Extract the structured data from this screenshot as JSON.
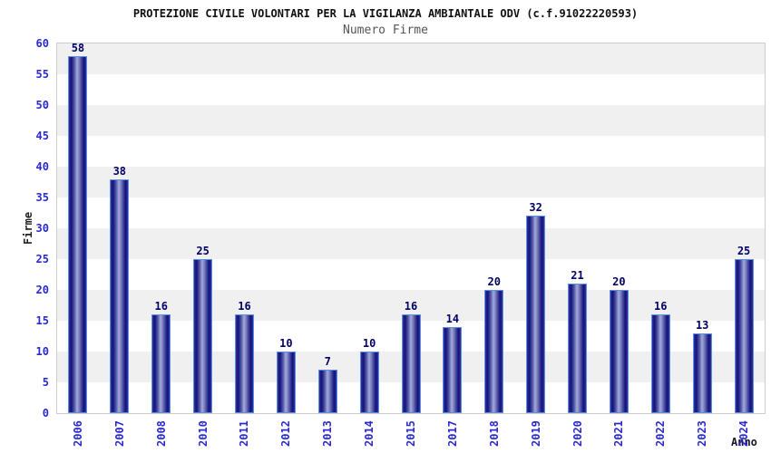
{
  "chart_data": {
    "type": "bar",
    "title": "PROTEZIONE CIVILE VOLONTARI PER LA VIGILANZA AMBIANTALE ODV (c.f.91022220593)",
    "subtitle": "Numero Firme",
    "xlabel": "Anno",
    "ylabel": "Firme",
    "categories": [
      "2006",
      "2007",
      "2008",
      "2010",
      "2011",
      "2012",
      "2013",
      "2014",
      "2015",
      "2017",
      "2018",
      "2019",
      "2020",
      "2021",
      "2022",
      "2023",
      "2024"
    ],
    "values": [
      58,
      38,
      16,
      25,
      16,
      10,
      7,
      10,
      16,
      14,
      20,
      32,
      21,
      20,
      16,
      13,
      25
    ],
    "ylim": [
      0,
      60
    ],
    "ytick_step": 5,
    "grid": "alternating-horizontal-bands",
    "legend": "none",
    "colors": {
      "bar_dark": "#12127a",
      "bar_light": "#a4a9da",
      "bar_border": "#5b8fe0",
      "axis_tick_label": "#2a2ad0",
      "value_label": "#000066",
      "band_gray": "#f0f0f0",
      "band_white": "#ffffff",
      "plot_border": "#cccccc",
      "title_color": "#111111",
      "subtitle_color": "#555555"
    }
  }
}
